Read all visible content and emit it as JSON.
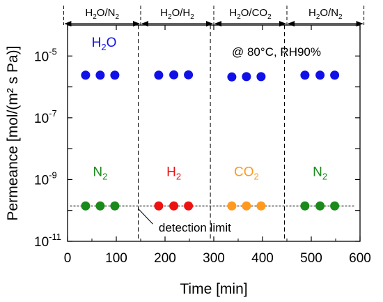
{
  "chart_data": {
    "type": "scatter",
    "xlabel": "Time [min]",
    "ylabel": "Permeance [mol/(m² s Pa)]",
    "xlim": [
      0,
      600
    ],
    "ylim_log10": [
      -11,
      -4
    ],
    "y_scale": "log",
    "x_ticks": [
      "0",
      "100",
      "200",
      "300",
      "400",
      "500",
      "600"
    ],
    "y_ticks": [
      {
        "base": "10",
        "exp": "-11",
        "value": -11
      },
      {
        "base": "10",
        "exp": "-9",
        "value": -9
      },
      {
        "base": "10",
        "exp": "-7",
        "value": -7
      },
      {
        "base": "10",
        "exp": "-5",
        "value": -5
      }
    ],
    "grid": false,
    "annotation": "@ 80°C, RH90%",
    "detection_limit": {
      "label": "detection limit",
      "value": 1.4e-10
    },
    "segments": [
      {
        "label_main": "H",
        "label_sub": "2",
        "label_rest": "O/N",
        "label_sub2": "2",
        "x_start": -8,
        "x_end": 150,
        "divider_x": 145
      },
      {
        "label_main": "H",
        "label_sub": "2",
        "label_rest": "O/H",
        "label_sub2": "2",
        "x_start": 150,
        "x_end": 300,
        "divider_x": 293
      },
      {
        "label_main": "H",
        "label_sub": "2",
        "label_rest": "O/CO",
        "label_sub2": "2",
        "x_start": 300,
        "x_end": 450,
        "divider_x": 445
      },
      {
        "label_main": "H",
        "label_sub": "2",
        "label_rest": "O/N",
        "label_sub2": "2",
        "x_start": 450,
        "x_end": 608,
        "divider_x": null
      }
    ],
    "series": [
      {
        "name_main": "H",
        "name_sub": "2",
        "name_rest": "O",
        "color": "#1010e8",
        "label_x": 75,
        "label_y": 2e-05,
        "x": [
          37,
          67,
          97,
          187,
          218,
          248,
          337,
          367,
          397,
          487,
          518,
          548
        ],
        "y": [
          2.4e-06,
          2.4e-06,
          2.4e-06,
          2.4e-06,
          2.45e-06,
          2.45e-06,
          2.1e-06,
          2.15e-06,
          2.15e-06,
          2.4e-06,
          2.4e-06,
          2.4e-06
        ]
      },
      {
        "name_main": "N",
        "name_sub": "2",
        "name_rest": "",
        "color": "#1a8a1a",
        "label_x": 67,
        "label_y": 1.3e-09,
        "x": [
          37,
          67,
          97
        ],
        "y": [
          1.4e-10,
          1.4e-10,
          1.4e-10
        ]
      },
      {
        "name_main": "H",
        "name_sub": "2",
        "name_rest": "",
        "color": "#ee1111",
        "label_x": 218,
        "label_y": 1.3e-09,
        "x": [
          187,
          218,
          248
        ],
        "y": [
          1.4e-10,
          1.4e-10,
          1.4e-10
        ]
      },
      {
        "name_main": "CO",
        "name_sub": "2",
        "name_rest": "",
        "color": "#ff9a1e",
        "label_x": 367,
        "label_y": 1.3e-09,
        "x": [
          337,
          367,
          397
        ],
        "y": [
          1.4e-10,
          1.4e-10,
          1.4e-10
        ]
      },
      {
        "name_main": "N",
        "name_sub": "2",
        "name_rest": "",
        "color": "#1a8a1a",
        "label_x": 518,
        "label_y": 1.3e-09,
        "x": [
          487,
          518,
          548
        ],
        "y": [
          1.4e-10,
          1.4e-10,
          1.4e-10
        ]
      }
    ]
  }
}
